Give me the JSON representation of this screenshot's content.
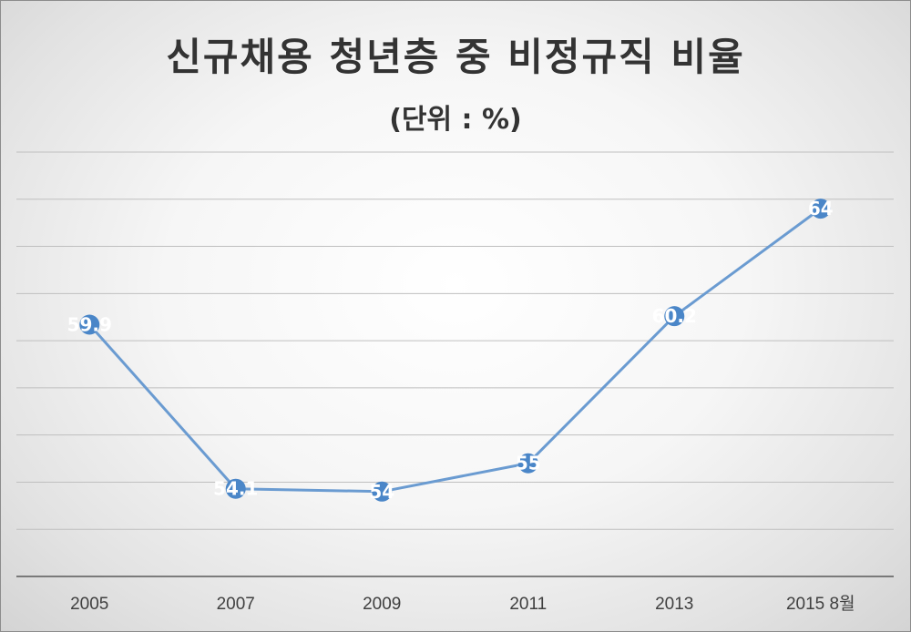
{
  "chart_data": {
    "type": "line",
    "title": "신규채용 청년층 중 비정규직 비율",
    "subtitle": "(단위 : %)",
    "categories": [
      "2005",
      "2007",
      "2009",
      "2011",
      "2013",
      "2015 8월"
    ],
    "series": [
      {
        "values": [
          59.9,
          54.1,
          54,
          55,
          60.2,
          64
        ]
      }
    ],
    "data_labels": [
      "59.9",
      "54.1",
      "54",
      "55",
      "60.2",
      "64"
    ],
    "ylim": [
      51,
      66
    ],
    "grid": true,
    "legend": "none",
    "xlabel": "",
    "ylabel": "",
    "colors": {
      "line": "#6a9bd1",
      "marker": "#4a86c8",
      "grid": "#bfbfbf",
      "axis": "#595959"
    }
  }
}
